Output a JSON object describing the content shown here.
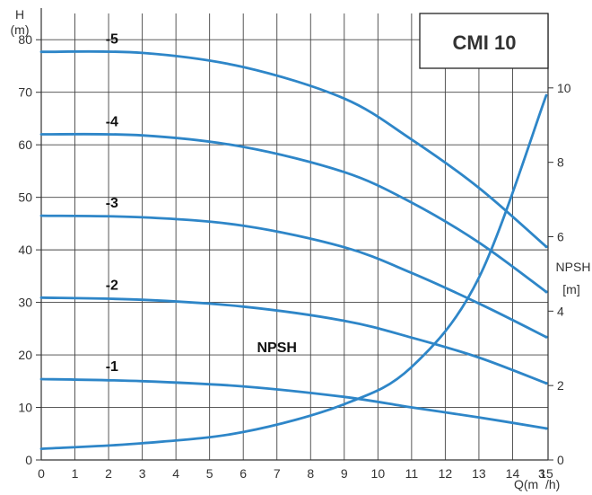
{
  "chart_data": {
    "type": "line",
    "title": "CMI 10",
    "colors": {
      "curve": "#2e86c8",
      "grid": "#333333",
      "text": "#333333"
    },
    "x_axis": {
      "label": "Q(m³/h)",
      "label_main": "Q(m",
      "label_sup": "3",
      "label_end": "/h)",
      "range": [
        0,
        15
      ],
      "ticks": [
        "0",
        "1",
        "2",
        "3",
        "4",
        "5",
        "6",
        "7",
        "8",
        "9",
        "10",
        "11",
        "12",
        "13",
        "14",
        "15"
      ]
    },
    "y_axis_left": {
      "label_top": "H",
      "label_unit": "(m)",
      "range": [
        0,
        85
      ],
      "ticks": [
        "0",
        "10",
        "20",
        "30",
        "40",
        "50",
        "60",
        "70",
        "80"
      ]
    },
    "y_axis_right": {
      "label_top": "NPSH",
      "label_unit": "[m]",
      "range": [
        0,
        12
      ],
      "ticks": [
        "0",
        "2",
        "4",
        "6",
        "8",
        "10"
      ]
    },
    "series": [
      {
        "name": "-1",
        "axis": "left",
        "x": [
          0,
          3,
          6,
          9,
          11,
          13,
          15
        ],
        "y": [
          15.4,
          15.0,
          14.0,
          12.0,
          10.0,
          8.1,
          6.0
        ]
      },
      {
        "name": "-2",
        "axis": "left",
        "x": [
          0,
          3,
          6,
          9,
          11,
          13,
          15
        ],
        "y": [
          30.9,
          30.5,
          29.2,
          26.5,
          23.3,
          19.5,
          14.6
        ]
      },
      {
        "name": "-3",
        "axis": "left",
        "x": [
          0,
          3,
          6,
          9,
          11,
          13,
          15
        ],
        "y": [
          46.5,
          46.2,
          44.6,
          40.5,
          35.6,
          29.8,
          23.4
        ]
      },
      {
        "name": "-4",
        "axis": "left",
        "x": [
          0,
          3,
          6,
          9,
          11,
          13,
          15
        ],
        "y": [
          62.0,
          61.8,
          59.6,
          54.8,
          49.0,
          41.4,
          32.0
        ]
      },
      {
        "name": "-5",
        "axis": "left",
        "x": [
          0,
          3,
          6,
          9,
          11,
          13,
          15
        ],
        "y": [
          77.7,
          77.5,
          74.8,
          68.8,
          61.0,
          51.8,
          40.6
        ]
      },
      {
        "name": "NPSH",
        "axis": "right",
        "x": [
          0,
          3,
          6,
          9,
          11,
          13,
          15
        ],
        "y": [
          0.3,
          0.45,
          0.75,
          1.5,
          2.5,
          4.9,
          9.8
        ]
      }
    ]
  }
}
